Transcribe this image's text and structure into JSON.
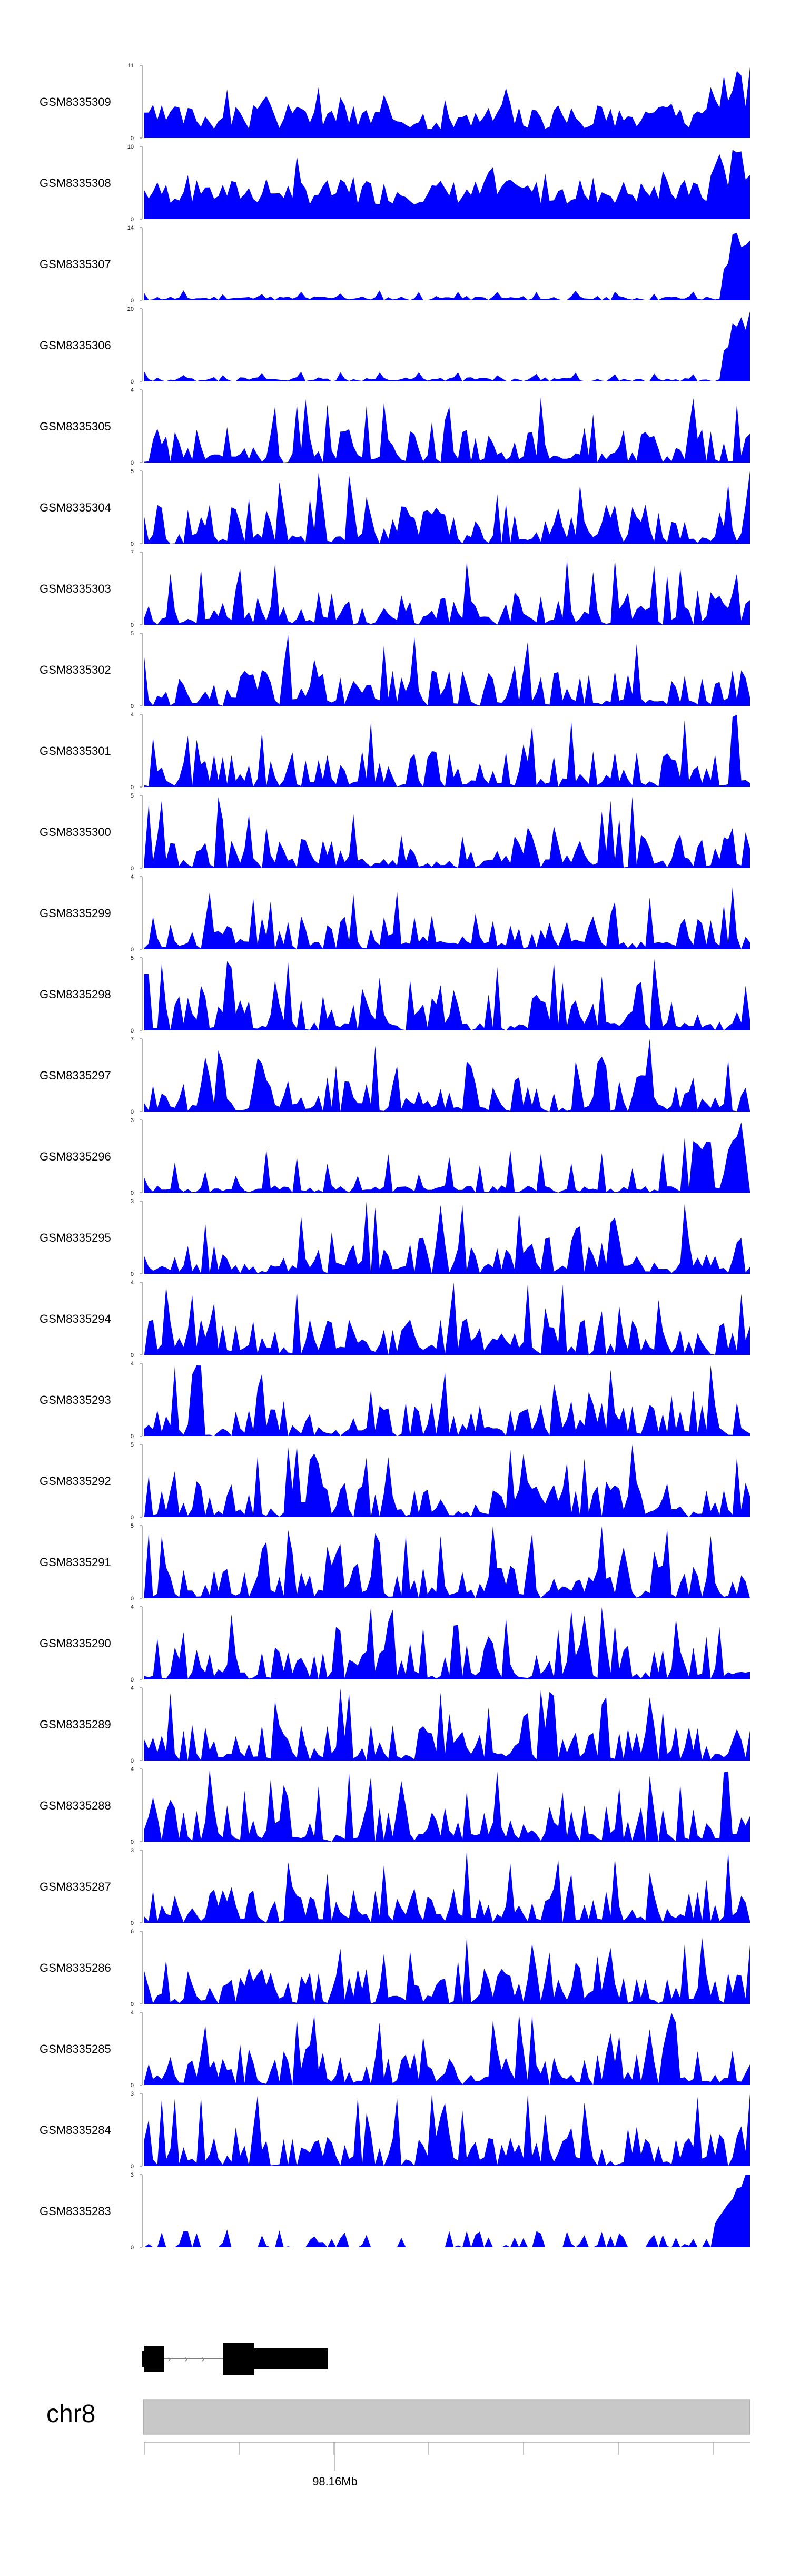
{
  "chart_data": {
    "type": "area",
    "series_color": "#0000ff",
    "chromosome": "chr8",
    "position_label": "98.16Mb",
    "bins": 140,
    "tracks": [
      {
        "name": "GSM8335309",
        "ymax": 11,
        "seed": 3,
        "fill_min": 0.12,
        "shape": "high-right"
      },
      {
        "name": "GSM8335308",
        "ymax": 10,
        "seed": 7,
        "fill_min": 0.2,
        "shape": "high-right"
      },
      {
        "name": "GSM8335307",
        "ymax": 14,
        "seed": 11,
        "fill_min": 0.0,
        "shape": "flat-peak-right"
      },
      {
        "name": "GSM8335306",
        "ymax": 20,
        "seed": 13,
        "fill_min": 0.0,
        "shape": "flat-peak-right"
      },
      {
        "name": "GSM8335305",
        "ymax": 4,
        "seed": 17,
        "fill_min": 0.0,
        "shape": "spiky"
      },
      {
        "name": "GSM8335304",
        "ymax": 5,
        "seed": 19,
        "fill_min": 0.0,
        "shape": "spiky-right"
      },
      {
        "name": "GSM8335303",
        "ymax": 7,
        "seed": 23,
        "fill_min": 0.0,
        "shape": "spiky"
      },
      {
        "name": "GSM8335302",
        "ymax": 5,
        "seed": 29,
        "fill_min": 0.0,
        "shape": "spiky"
      },
      {
        "name": "GSM8335301",
        "ymax": 4,
        "seed": 31,
        "fill_min": 0.0,
        "shape": "spiky"
      },
      {
        "name": "GSM8335300",
        "ymax": 5,
        "seed": 37,
        "fill_min": 0.0,
        "shape": "spiky"
      },
      {
        "name": "GSM8335299",
        "ymax": 4,
        "seed": 41,
        "fill_min": 0.0,
        "shape": "spiky"
      },
      {
        "name": "GSM8335298",
        "ymax": 5,
        "seed": 43,
        "fill_min": 0.0,
        "shape": "spiky"
      },
      {
        "name": "GSM8335297",
        "ymax": 7,
        "seed": 47,
        "fill_min": 0.0,
        "shape": "spiky"
      },
      {
        "name": "GSM8335296",
        "ymax": 3,
        "seed": 53,
        "fill_min": 0.0,
        "shape": "sparse"
      },
      {
        "name": "GSM8335295",
        "ymax": 3,
        "seed": 59,
        "fill_min": 0.0,
        "shape": "spiky"
      },
      {
        "name": "GSM8335294",
        "ymax": 4,
        "seed": 61,
        "fill_min": 0.0,
        "shape": "spiky"
      },
      {
        "name": "GSM8335293",
        "ymax": 4,
        "seed": 67,
        "fill_min": 0.0,
        "shape": "spiky"
      },
      {
        "name": "GSM8335292",
        "ymax": 5,
        "seed": 71,
        "fill_min": 0.0,
        "shape": "spiky"
      },
      {
        "name": "GSM8335291",
        "ymax": 5,
        "seed": 73,
        "fill_min": 0.0,
        "shape": "spiky"
      },
      {
        "name": "GSM8335290",
        "ymax": 4,
        "seed": 79,
        "fill_min": 0.0,
        "shape": "spiky"
      },
      {
        "name": "GSM8335289",
        "ymax": 4,
        "seed": 83,
        "fill_min": 0.0,
        "shape": "spiky"
      },
      {
        "name": "GSM8335288",
        "ymax": 4,
        "seed": 89,
        "fill_min": 0.0,
        "shape": "spiky"
      },
      {
        "name": "GSM8335287",
        "ymax": 3,
        "seed": 97,
        "fill_min": 0.0,
        "shape": "spiky"
      },
      {
        "name": "GSM8335286",
        "ymax": 6,
        "seed": 101,
        "fill_min": 0.0,
        "shape": "spiky"
      },
      {
        "name": "GSM8335285",
        "ymax": 4,
        "seed": 103,
        "fill_min": 0.0,
        "shape": "spiky"
      },
      {
        "name": "GSM8335284",
        "ymax": 3,
        "seed": 107,
        "fill_min": 0.0,
        "shape": "spiky-right"
      },
      {
        "name": "GSM8335283",
        "ymax": 3,
        "seed": 109,
        "fill_min": 0.0,
        "shape": "peak-right"
      }
    ]
  }
}
